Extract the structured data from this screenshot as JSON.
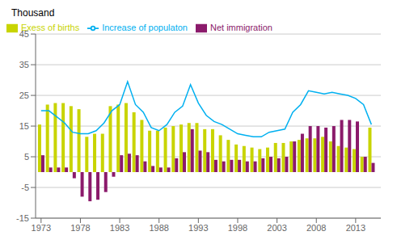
{
  "chart_data": {
    "type": "bar",
    "ylabel": "Thousand",
    "x": [
      1973,
      1974,
      1975,
      1976,
      1977,
      1978,
      1979,
      1980,
      1981,
      1982,
      1983,
      1984,
      1985,
      1986,
      1987,
      1988,
      1989,
      1990,
      1991,
      1992,
      1993,
      1994,
      1995,
      1996,
      1997,
      1998,
      1999,
      2000,
      2001,
      2002,
      2003,
      2004,
      2005,
      2006,
      2007,
      2008,
      2009,
      2010,
      2011,
      2012,
      2013,
      2014,
      2015
    ],
    "series": [
      {
        "name": "Exess of births",
        "type": "bar",
        "color": "#c8d400",
        "values": [
          15.5,
          22.0,
          22.5,
          22.5,
          21.5,
          20.5,
          11.5,
          12.5,
          12.5,
          21.5,
          22.0,
          22.5,
          19.5,
          17.0,
          13.5,
          13.5,
          14.5,
          15.0,
          15.5,
          16.0,
          16.0,
          14.0,
          14.0,
          12.0,
          10.5,
          9.0,
          8.5,
          8.0,
          7.5,
          8.0,
          9.5,
          9.5,
          10.0,
          10.5,
          11.0,
          11.0,
          11.5,
          10.0,
          8.5,
          8.0,
          7.5,
          5.0,
          14.5
        ]
      },
      {
        "name": "Net immigration",
        "type": "bar",
        "color": "#8b1a6b",
        "values": [
          5.5,
          1.5,
          1.5,
          1.5,
          -2.0,
          -8.0,
          -9.5,
          -9.0,
          -6.5,
          -1.5,
          5.5,
          6.0,
          5.5,
          3.5,
          2.0,
          1.5,
          1.5,
          4.5,
          6.5,
          14.0,
          7.0,
          6.5,
          4.0,
          3.5,
          4.0,
          4.0,
          3.5,
          3.5,
          4.5,
          5.0,
          4.5,
          5.0,
          10.0,
          12.5,
          15.0,
          15.0,
          14.5,
          15.0,
          17.0,
          17.0,
          16.5,
          5.0,
          3.0
        ]
      },
      {
        "name": "Increase of populaton",
        "type": "line",
        "color": "#00b0f0",
        "values": [
          20.0,
          20.0,
          18.0,
          16.0,
          13.0,
          12.5,
          12.5,
          13.5,
          16.0,
          20.0,
          22.0,
          29.5,
          22.0,
          19.5,
          14.5,
          13.5,
          15.5,
          19.5,
          21.5,
          28.5,
          22.5,
          18.5,
          16.5,
          15.5,
          14.0,
          12.5,
          12.0,
          11.5,
          11.5,
          13.0,
          13.5,
          14.0,
          19.5,
          22.0,
          26.5,
          26.0,
          25.5,
          26.0,
          25.5,
          25.0,
          24.0,
          22.0,
          15.5
        ]
      }
    ],
    "xlim": [
      1972.3,
      2016.2
    ],
    "xticks": [
      1973,
      1978,
      1983,
      1988,
      1993,
      1998,
      2003,
      2008,
      2013
    ],
    "ylim": [
      -15,
      45
    ],
    "yticks": [
      -15,
      -5,
      5,
      15,
      25,
      35,
      45
    ],
    "grid": true,
    "legend": "upper left"
  }
}
